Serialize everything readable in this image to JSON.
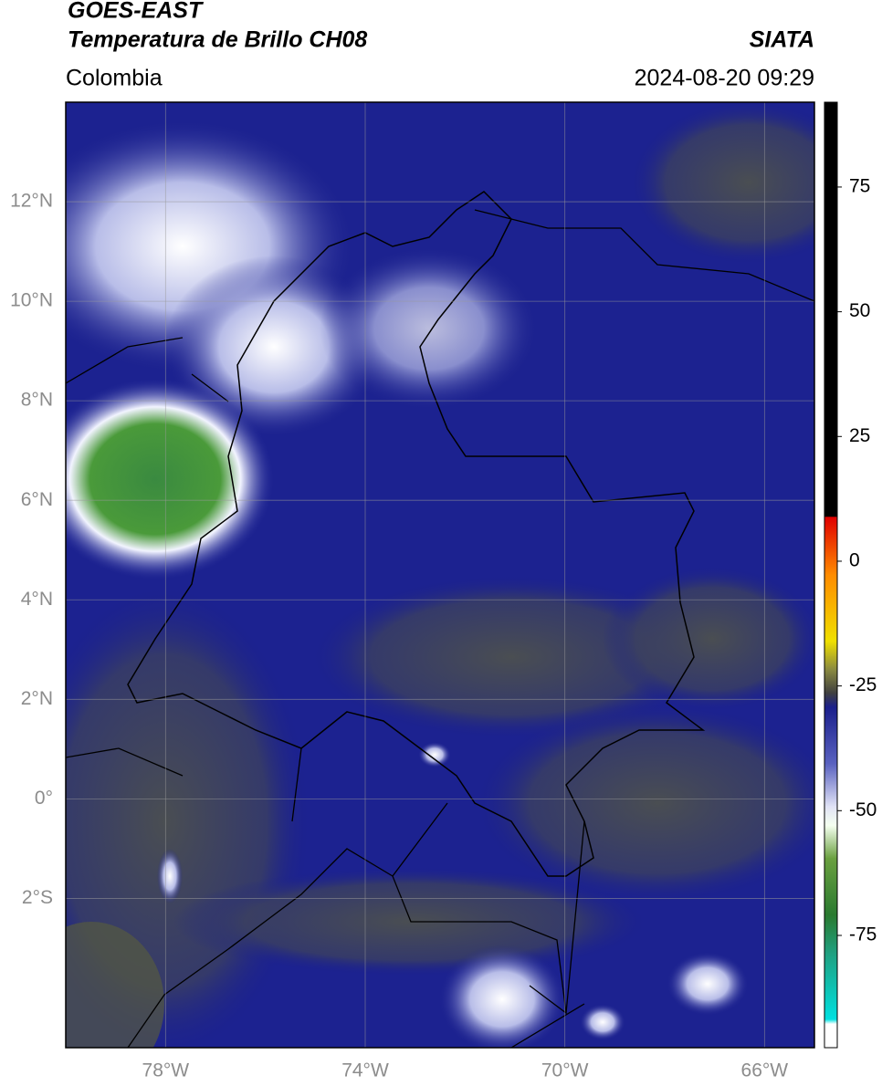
{
  "header": {
    "satellite": "GOES-EAST",
    "product": "Temperatura de Brillo CH08",
    "source": "SIATA",
    "region": "Colombia",
    "datetime": "2024-08-20 09:29"
  },
  "map": {
    "lonlim": [
      -80,
      -65
    ],
    "latlim": [
      -5,
      14
    ],
    "lat_ticks": [
      {
        "value": 12,
        "label": "12°N"
      },
      {
        "value": 10,
        "label": "10°N"
      },
      {
        "value": 8,
        "label": "8°N"
      },
      {
        "value": 6,
        "label": "6°N"
      },
      {
        "value": 4,
        "label": "4°N"
      },
      {
        "value": 2,
        "label": "2°N"
      },
      {
        "value": 0,
        "label": "0°"
      },
      {
        "value": -2,
        "label": "2°S"
      }
    ],
    "lon_ticks": [
      {
        "value": -78,
        "label": "78°W"
      },
      {
        "value": -74,
        "label": "74°W"
      },
      {
        "value": -70,
        "label": "70°W"
      },
      {
        "value": -66,
        "label": "66°W"
      }
    ],
    "grid": true
  },
  "colorbar": {
    "lim": [
      -97.5,
      92
    ],
    "ticks": [
      75,
      50,
      25,
      0,
      -25,
      -50,
      -75
    ]
  }
}
